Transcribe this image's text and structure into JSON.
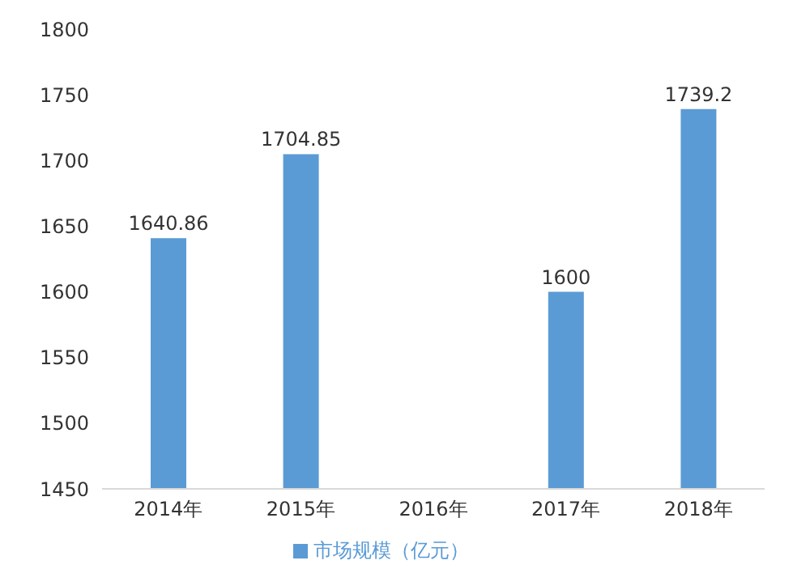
{
  "chart_data": {
    "type": "bar",
    "categories": [
      "2014年",
      "2015年",
      "2016年",
      "2017年",
      "2018年"
    ],
    "series": [
      {
        "name": "市场规模（亿元）",
        "color": "#5b9bd5",
        "values": [
          1640.86,
          1704.85,
          null,
          1600,
          1739.2
        ]
      }
    ],
    "ylim": [
      1450,
      1800
    ],
    "yticks": [
      1450,
      1500,
      1550,
      1600,
      1650,
      1700,
      1750,
      1800
    ],
    "grid": false,
    "legend": "bottom",
    "data_labels": true
  }
}
